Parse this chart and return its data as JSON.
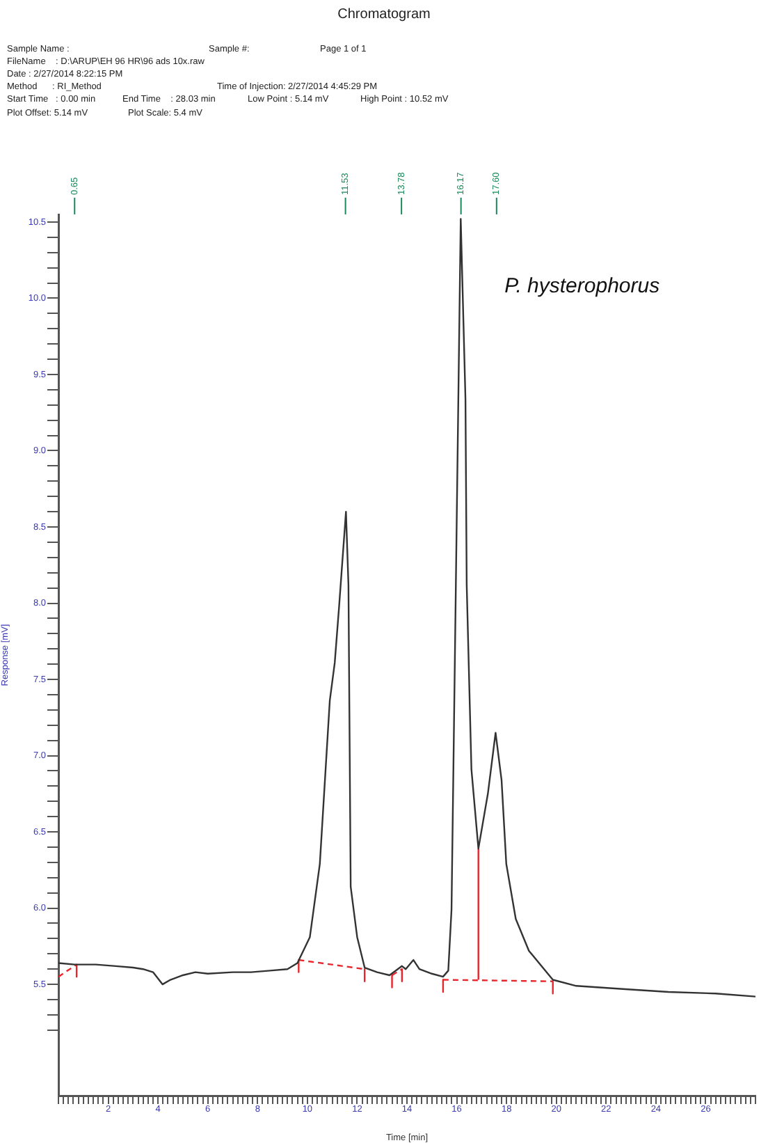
{
  "chart_data": {
    "type": "line",
    "title": "Chromatogram",
    "xlabel": "Time [min]",
    "ylabel": "Response [mV]",
    "annotations": [
      "Sample Name :",
      "Sample #:",
      "Page 1 of 1",
      "FileName    : D:\\ARUP\\EH 96 HR\\96 ads 10x.raw",
      "Date : 2/27/2014 8:22:15 PM",
      "Method      : RI_Method",
      "Time of Injection: 2/27/2014 4:45:29 PM",
      "Start Time   : 0.00 min",
      "End Time    : 28.03 min",
      "Low Point : 5.14 mV",
      "High Point : 10.52 mV",
      "Plot Offset: 5.14 mV",
      "Plot Scale: 5.4 mV",
      "P. hysterophorus"
    ],
    "ref_lines": [
      {
        "axis": "x",
        "value": 0.65,
        "label": "0.65",
        "color": "#1a8a5a"
      },
      {
        "axis": "x",
        "value": 11.53,
        "label": "11.53",
        "color": "#1a8a5a"
      },
      {
        "axis": "x",
        "value": 13.78,
        "label": "13.78",
        "color": "#1a8a5a"
      },
      {
        "axis": "x",
        "value": 16.17,
        "label": "16.17",
        "color": "#1a8a5a"
      },
      {
        "axis": "x",
        "value": 17.6,
        "label": "17.60",
        "color": "#1a8a5a"
      }
    ],
    "series": [
      {
        "color": "#333333",
        "x": [
          0,
          0.65,
          1.5,
          2.3,
          3.0,
          3.4,
          3.8,
          4.18,
          4.5,
          5.0,
          5.5,
          6.0,
          7.0,
          7.73,
          8.5,
          9.2,
          9.6,
          10.1,
          10.5,
          10.9,
          11.1,
          11.27,
          11.55,
          11.65,
          11.74,
          12.0,
          12.3,
          12.8,
          13.3,
          13.8,
          13.95,
          14.26,
          14.5,
          15.0,
          15.45,
          15.66,
          15.79,
          15.94,
          16.16,
          16.35,
          16.4,
          16.59,
          16.87,
          17.25,
          17.56,
          17.8,
          17.99,
          18.37,
          18.9,
          19.86,
          20.8,
          22.66,
          24.5,
          26.4,
          28.0
        ],
        "values": [
          5.64,
          5.63,
          5.63,
          5.62,
          5.61,
          5.6,
          5.58,
          5.5,
          5.53,
          5.56,
          5.58,
          5.57,
          5.58,
          5.58,
          5.59,
          5.6,
          5.64,
          5.81,
          6.29,
          7.36,
          7.61,
          7.97,
          8.6,
          8.12,
          6.14,
          5.81,
          5.61,
          5.58,
          5.56,
          5.62,
          5.6,
          5.66,
          5.6,
          5.57,
          5.55,
          5.59,
          5.99,
          7.82,
          10.52,
          9.34,
          8.12,
          6.91,
          6.39,
          6.75,
          7.15,
          6.84,
          6.29,
          5.93,
          5.72,
          5.53,
          5.49,
          5.47,
          5.45,
          5.44,
          5.42
        ]
      },
      {
        "color": "#e8252a",
        "line_style": "dashed",
        "x": [
          0,
          0.73,
          null,
          9.65,
          12.3,
          null,
          13.4,
          13.8,
          null,
          15.45,
          19.86
        ],
        "values": [
          5.55,
          5.63,
          null,
          5.66,
          5.6,
          null,
          5.56,
          5.6,
          null,
          5.53,
          5.52
        ]
      },
      {
        "color": "#e8252a",
        "x": [
          16.87,
          16.87,
          null,
          0.73,
          0.73,
          null,
          9.65,
          9.65,
          null,
          12.3,
          12.3,
          null,
          13.4,
          13.4,
          null,
          13.8,
          13.8,
          null,
          15.45,
          15.45,
          null,
          19.86,
          19.86
        ],
        "values": [
          5.53,
          6.39,
          null,
          5.63,
          5.55,
          null,
          5.66,
          5.58,
          null,
          5.6,
          5.52,
          null,
          5.56,
          5.48,
          null,
          5.6,
          5.52,
          null,
          5.53,
          5.45,
          null,
          5.52,
          5.44
        ]
      }
    ],
    "xlim": [
      0,
      28
    ],
    "ylim": [
      4.77,
      10.55
    ],
    "xticks": [
      {
        "value": 0,
        "label": null
      },
      {
        "value": 0.2,
        "label": null
      },
      {
        "value": 0.4,
        "label": null
      },
      {
        "value": 0.6,
        "label": null
      },
      {
        "value": 0.8,
        "label": null
      },
      {
        "value": 1,
        "label": null
      },
      {
        "value": 1.2,
        "label": null
      },
      {
        "value": 1.4,
        "label": null
      },
      {
        "value": 1.6,
        "label": null
      },
      {
        "value": 1.8,
        "label": null
      },
      2,
      {
        "value": 2.2,
        "label": null
      },
      {
        "value": 2.4,
        "label": null
      },
      {
        "value": 2.6,
        "label": null
      },
      {
        "value": 2.8,
        "label": null
      },
      {
        "value": 3,
        "label": null
      },
      {
        "value": 3.2,
        "label": null
      },
      {
        "value": 3.4,
        "label": null
      },
      {
        "value": 3.6,
        "label": null
      },
      {
        "value": 3.8,
        "label": null
      },
      4,
      {
        "value": 4.2,
        "label": null
      },
      {
        "value": 4.4,
        "label": null
      },
      {
        "value": 4.6,
        "label": null
      },
      {
        "value": 4.8,
        "label": null
      },
      {
        "value": 5,
        "label": null
      },
      {
        "value": 5.2,
        "label": null
      },
      {
        "value": 5.4,
        "label": null
      },
      {
        "value": 5.6,
        "label": null
      },
      {
        "value": 5.8,
        "label": null
      },
      6,
      {
        "value": 6.2,
        "label": null
      },
      {
        "value": 6.4,
        "label": null
      },
      {
        "value": 6.6,
        "label": null
      },
      {
        "value": 6.8,
        "label": null
      },
      {
        "value": 7,
        "label": null
      },
      {
        "value": 7.2,
        "label": null
      },
      {
        "value": 7.4,
        "label": null
      },
      {
        "value": 7.6,
        "label": null
      },
      {
        "value": 7.8,
        "label": null
      },
      8,
      {
        "value": 8.2,
        "label": null
      },
      {
        "value": 8.4,
        "label": null
      },
      {
        "value": 8.6,
        "label": null
      },
      {
        "value": 8.8,
        "label": null
      },
      {
        "value": 9,
        "label": null
      },
      {
        "value": 9.2,
        "label": null
      },
      {
        "value": 9.4,
        "label": null
      },
      {
        "value": 9.6,
        "label": null
      },
      {
        "value": 9.8,
        "label": null
      },
      10,
      {
        "value": 10.2,
        "label": null
      },
      {
        "value": 10.4,
        "label": null
      },
      {
        "value": 10.6,
        "label": null
      },
      {
        "value": 10.8,
        "label": null
      },
      {
        "value": 11,
        "label": null
      },
      {
        "value": 11.2,
        "label": null
      },
      {
        "value": 11.4,
        "label": null
      },
      {
        "value": 11.6,
        "label": null
      },
      {
        "value": 11.8,
        "label": null
      },
      12,
      {
        "value": 12.2,
        "label": null
      },
      {
        "value": 12.4,
        "label": null
      },
      {
        "value": 12.6,
        "label": null
      },
      {
        "value": 12.8,
        "label": null
      },
      {
        "value": 13,
        "label": null
      },
      {
        "value": 13.2,
        "label": null
      },
      {
        "value": 13.4,
        "label": null
      },
      {
        "value": 13.6,
        "label": null
      },
      {
        "value": 13.8,
        "label": null
      },
      14,
      {
        "value": 14.2,
        "label": null
      },
      {
        "value": 14.4,
        "label": null
      },
      {
        "value": 14.6,
        "label": null
      },
      {
        "value": 14.8,
        "label": null
      },
      {
        "value": 15,
        "label": null
      },
      {
        "value": 15.2,
        "label": null
      },
      {
        "value": 15.4,
        "label": null
      },
      {
        "value": 15.6,
        "label": null
      },
      {
        "value": 15.8,
        "label": null
      },
      16,
      {
        "value": 16.2,
        "label": null
      },
      {
        "value": 16.4,
        "label": null
      },
      {
        "value": 16.6,
        "label": null
      },
      {
        "value": 16.8,
        "label": null
      },
      {
        "value": 17,
        "label": null
      },
      {
        "value": 17.2,
        "label": null
      },
      {
        "value": 17.4,
        "label": null
      },
      {
        "value": 17.6,
        "label": null
      },
      {
        "value": 17.8,
        "label": null
      },
      18,
      {
        "value": 18.2,
        "label": null
      },
      {
        "value": 18.4,
        "label": null
      },
      {
        "value": 18.6,
        "label": null
      },
      {
        "value": 18.8,
        "label": null
      },
      {
        "value": 19,
        "label": null
      },
      {
        "value": 19.2,
        "label": null
      },
      {
        "value": 19.4,
        "label": null
      },
      {
        "value": 19.6,
        "label": null
      },
      {
        "value": 19.8,
        "label": null
      },
      20,
      {
        "value": 20.2,
        "label": null
      },
      {
        "value": 20.4,
        "label": null
      },
      {
        "value": 20.6,
        "label": null
      },
      {
        "value": 20.8,
        "label": null
      },
      {
        "value": 21,
        "label": null
      },
      {
        "value": 21.2,
        "label": null
      },
      {
        "value": 21.4,
        "label": null
      },
      {
        "value": 21.6,
        "label": null
      },
      {
        "value": 21.8,
        "label": null
      },
      22,
      {
        "value": 22.2,
        "label": null
      },
      {
        "value": 22.4,
        "label": null
      },
      {
        "value": 22.6,
        "label": null
      },
      {
        "value": 22.8,
        "label": null
      },
      {
        "value": 23,
        "label": null
      },
      {
        "value": 23.2,
        "label": null
      },
      {
        "value": 23.4,
        "label": null
      },
      {
        "value": 23.6,
        "label": null
      },
      {
        "value": 23.8,
        "label": null
      },
      24,
      {
        "value": 24.2,
        "label": null
      },
      {
        "value": 24.4,
        "label": null
      },
      {
        "value": 24.6,
        "label": null
      },
      {
        "value": 24.8,
        "label": null
      },
      {
        "value": 25,
        "label": null
      },
      {
        "value": 25.2,
        "label": null
      },
      {
        "value": 25.4,
        "label": null
      },
      {
        "value": 25.6,
        "label": null
      },
      {
        "value": 25.8,
        "label": null
      },
      26,
      {
        "value": 26.2,
        "label": null
      },
      {
        "value": 26.4,
        "label": null
      },
      {
        "value": 26.6,
        "label": null
      },
      {
        "value": 26.8,
        "label": null
      },
      {
        "value": 27,
        "label": null
      },
      {
        "value": 27.2,
        "label": null
      },
      {
        "value": 27.4,
        "label": null
      },
      {
        "value": 27.6,
        "label": null
      },
      {
        "value": 27.8,
        "label": null
      },
      {
        "value": 28,
        "label": null
      }
    ],
    "yticks": [
      {
        "value": 5.2,
        "label": null
      },
      {
        "value": 5.3,
        "label": null
      },
      {
        "value": 5.4,
        "label": null
      },
      5.5,
      {
        "value": 5.6,
        "label": null
      },
      {
        "value": 5.7,
        "label": null
      },
      {
        "value": 5.8,
        "label": null
      },
      {
        "value": 5.9,
        "label": null
      },
      {
        "value": 6,
        "label": "6.0"
      },
      {
        "value": 6.1,
        "label": null
      },
      {
        "value": 6.2,
        "label": null
      },
      {
        "value": 6.3,
        "label": null
      },
      {
        "value": 6.4,
        "label": null
      },
      6.5,
      {
        "value": 6.6,
        "label": null
      },
      {
        "value": 6.7,
        "label": null
      },
      {
        "value": 6.8,
        "label": null
      },
      {
        "value": 6.9,
        "label": null
      },
      {
        "value": 7,
        "label": "7.0"
      },
      {
        "value": 7.1,
        "label": null
      },
      {
        "value": 7.2,
        "label": null
      },
      {
        "value": 7.3,
        "label": null
      },
      {
        "value": 7.4,
        "label": null
      },
      7.5,
      {
        "value": 7.6,
        "label": null
      },
      {
        "value": 7.7,
        "label": null
      },
      {
        "value": 7.8,
        "label": null
      },
      {
        "value": 7.9,
        "label": null
      },
      {
        "value": 8,
        "label": "8.0"
      },
      {
        "value": 8.1,
        "label": null
      },
      {
        "value": 8.2,
        "label": null
      },
      {
        "value": 8.3,
        "label": null
      },
      {
        "value": 8.4,
        "label": null
      },
      8.5,
      {
        "value": 8.6,
        "label": null
      },
      {
        "value": 8.7,
        "label": null
      },
      {
        "value": 8.8,
        "label": null
      },
      {
        "value": 8.9,
        "label": null
      },
      {
        "value": 9,
        "label": "9.0"
      },
      {
        "value": 9.1,
        "label": null
      },
      {
        "value": 9.2,
        "label": null
      },
      {
        "value": 9.3,
        "label": null
      },
      {
        "value": 9.4,
        "label": null
      },
      9.5,
      {
        "value": 9.6,
        "label": null
      },
      {
        "value": 9.7,
        "label": null
      },
      {
        "value": 9.8,
        "label": null
      },
      {
        "value": 9.9,
        "label": null
      },
      {
        "value": 10,
        "label": "10.0"
      },
      {
        "value": 10.1,
        "label": null
      },
      {
        "value": 10.2,
        "label": null
      },
      {
        "value": 10.3,
        "label": null
      },
      {
        "value": 10.4,
        "label": null
      },
      10.5
    ],
    "grid": false,
    "legend": false,
    "marker": "none"
  }
}
